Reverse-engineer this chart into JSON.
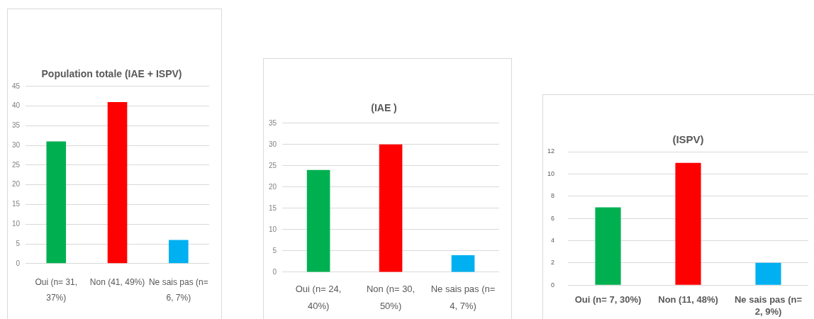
{
  "chart_data": [
    {
      "type": "bar",
      "title": "Population totale (IAE + ISPV)",
      "categories": [
        "Oui (n= 31, 37%)",
        "Non (41, 49%)",
        "Ne sais pas (n= 6, 7%)"
      ],
      "values": [
        31,
        41,
        6
      ],
      "colors": [
        "#00b050",
        "#ff0000",
        "#00b0f0"
      ],
      "ylim": [
        0,
        45
      ],
      "yticks": [
        0,
        5,
        10,
        15,
        20,
        25,
        30,
        35,
        40,
        45
      ],
      "grid": "y"
    },
    {
      "type": "bar",
      "title": "(IAE )",
      "categories": [
        "Oui (n= 24, 40%)",
        "Non (n= 30, 50%)",
        "Ne sais pas (n= 4, 7%)"
      ],
      "values": [
        24,
        30,
        4
      ],
      "colors": [
        "#00b050",
        "#ff0000",
        "#00b0f0"
      ],
      "ylim": [
        0,
        35
      ],
      "yticks": [
        0,
        5,
        10,
        15,
        20,
        25,
        30,
        35
      ],
      "grid": "y"
    },
    {
      "type": "bar",
      "title": "(ISPV)",
      "categories": [
        "Oui (n= 7, 30%)",
        "Non (11, 48%)",
        "Ne sais pas (n= 2, 9%)"
      ],
      "values": [
        7,
        11,
        2
      ],
      "colors": [
        "#00b050",
        "#ff0000",
        "#00b0f0"
      ],
      "ylim": [
        0,
        12
      ],
      "yticks": [
        0,
        2,
        4,
        6,
        8,
        10,
        12
      ],
      "grid": "y"
    }
  ]
}
